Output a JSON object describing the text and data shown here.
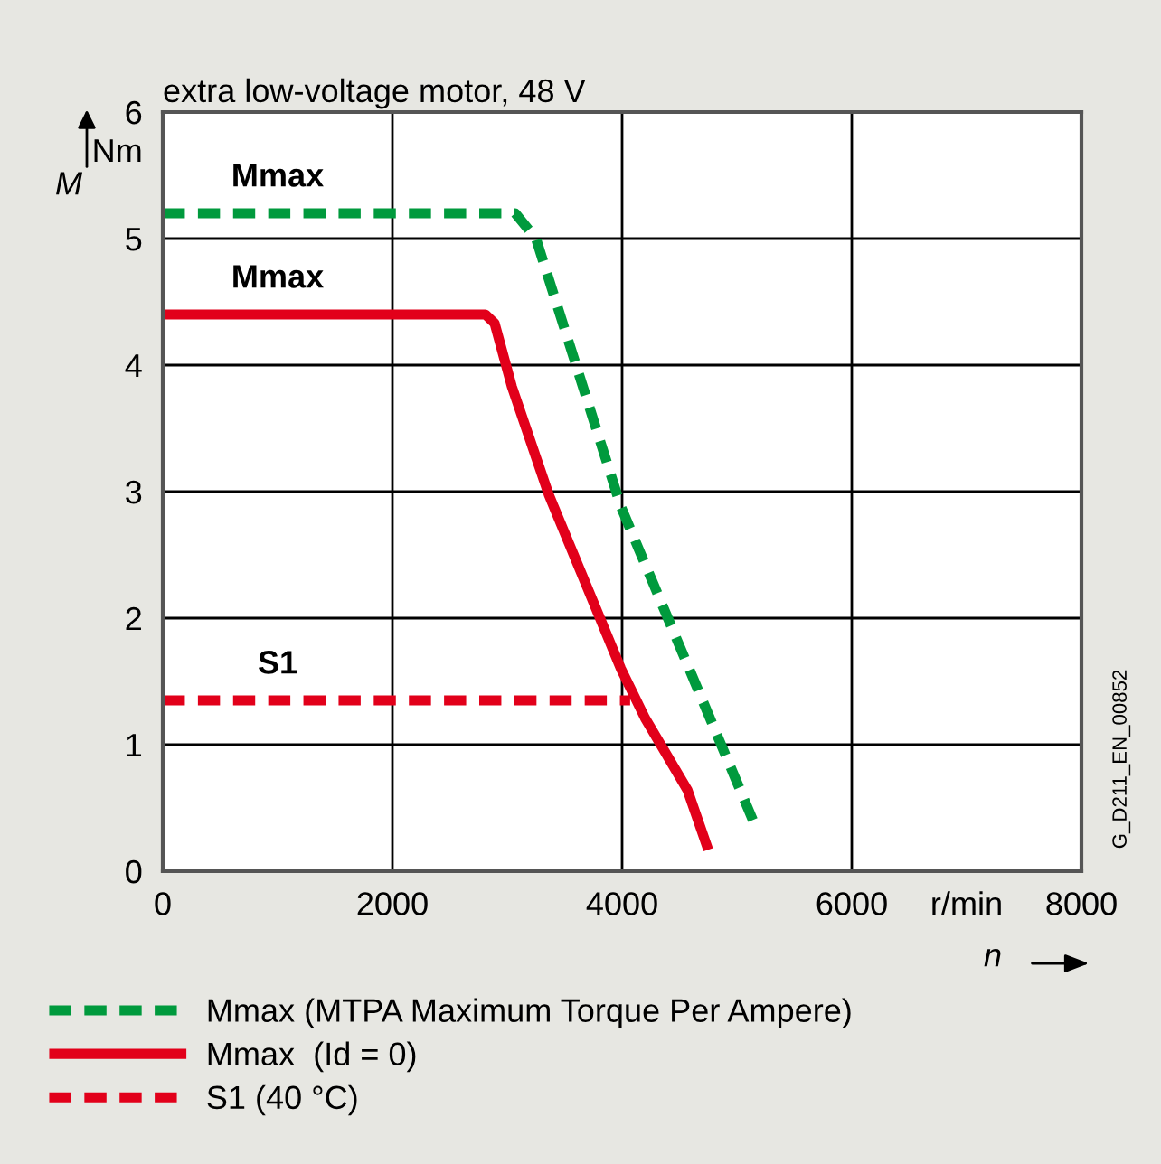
{
  "chart_data": {
    "type": "line",
    "title": "extra low-voltage motor, 48 V",
    "xlabel": "n",
    "ylabel": "M",
    "xlim": [
      0,
      8000
    ],
    "ylim": [
      0,
      6
    ],
    "xticks": [
      0,
      2000,
      4000,
      6000,
      {
        "value": 7000,
        "label": "r/min"
      },
      8000
    ],
    "yticks": [
      0,
      1,
      2,
      3,
      4,
      5,
      {
        "value": 5.7,
        "label": "Nm"
      },
      6
    ],
    "grid": true,
    "legend": "bottom",
    "marker": "none",
    "series": [
      {
        "name": "Mmax (MTPA Maximum Torque Per Ampere)",
        "color": "#009a3d",
        "line_style": "dashed",
        "x": [
          0,
          3070,
          3250,
          3990,
          5150
        ],
        "values": [
          5.2,
          5.2,
          5.0,
          2.88,
          0.38
        ]
      },
      {
        "name": "Mmax  (Id = 0)",
        "color": "#e2001a",
        "line_style": "solid",
        "x": [
          0,
          2810,
          2890,
          3040,
          3360,
          3990,
          4200,
          4570,
          4750
        ],
        "values": [
          4.4,
          4.4,
          4.33,
          3.83,
          2.98,
          1.6,
          1.21,
          0.64,
          0.17
        ]
      },
      {
        "name": "S1 (40 °C)",
        "color": "#e2001a",
        "line_style": "dashed",
        "x": [
          0,
          4070
        ],
        "values": [
          1.35,
          1.35
        ]
      }
    ],
    "annotations": [
      "Mmax",
      "Mmax",
      "S1",
      "G_D211_EN_00852"
    ]
  }
}
